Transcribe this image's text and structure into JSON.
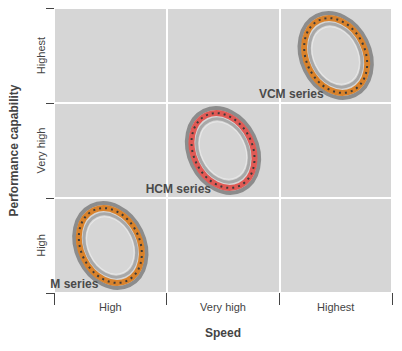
{
  "chart_data": {
    "type": "scatter",
    "x_label": "Speed",
    "y_label": "Performance capability",
    "x_categories": [
      "High",
      "Very high",
      "Highest"
    ],
    "y_categories": [
      "High",
      "Very high",
      "Highest"
    ],
    "grid": true,
    "series": [
      {
        "name": "M series",
        "x": "High",
        "y": "High",
        "color": "#d9822b"
      },
      {
        "name": "HCM series",
        "x": "Very high",
        "y": "Very high",
        "color": "#e05a55"
      },
      {
        "name": "VCM series",
        "x": "Highest",
        "y": "Highest",
        "color": "#d9822b"
      }
    ]
  }
}
